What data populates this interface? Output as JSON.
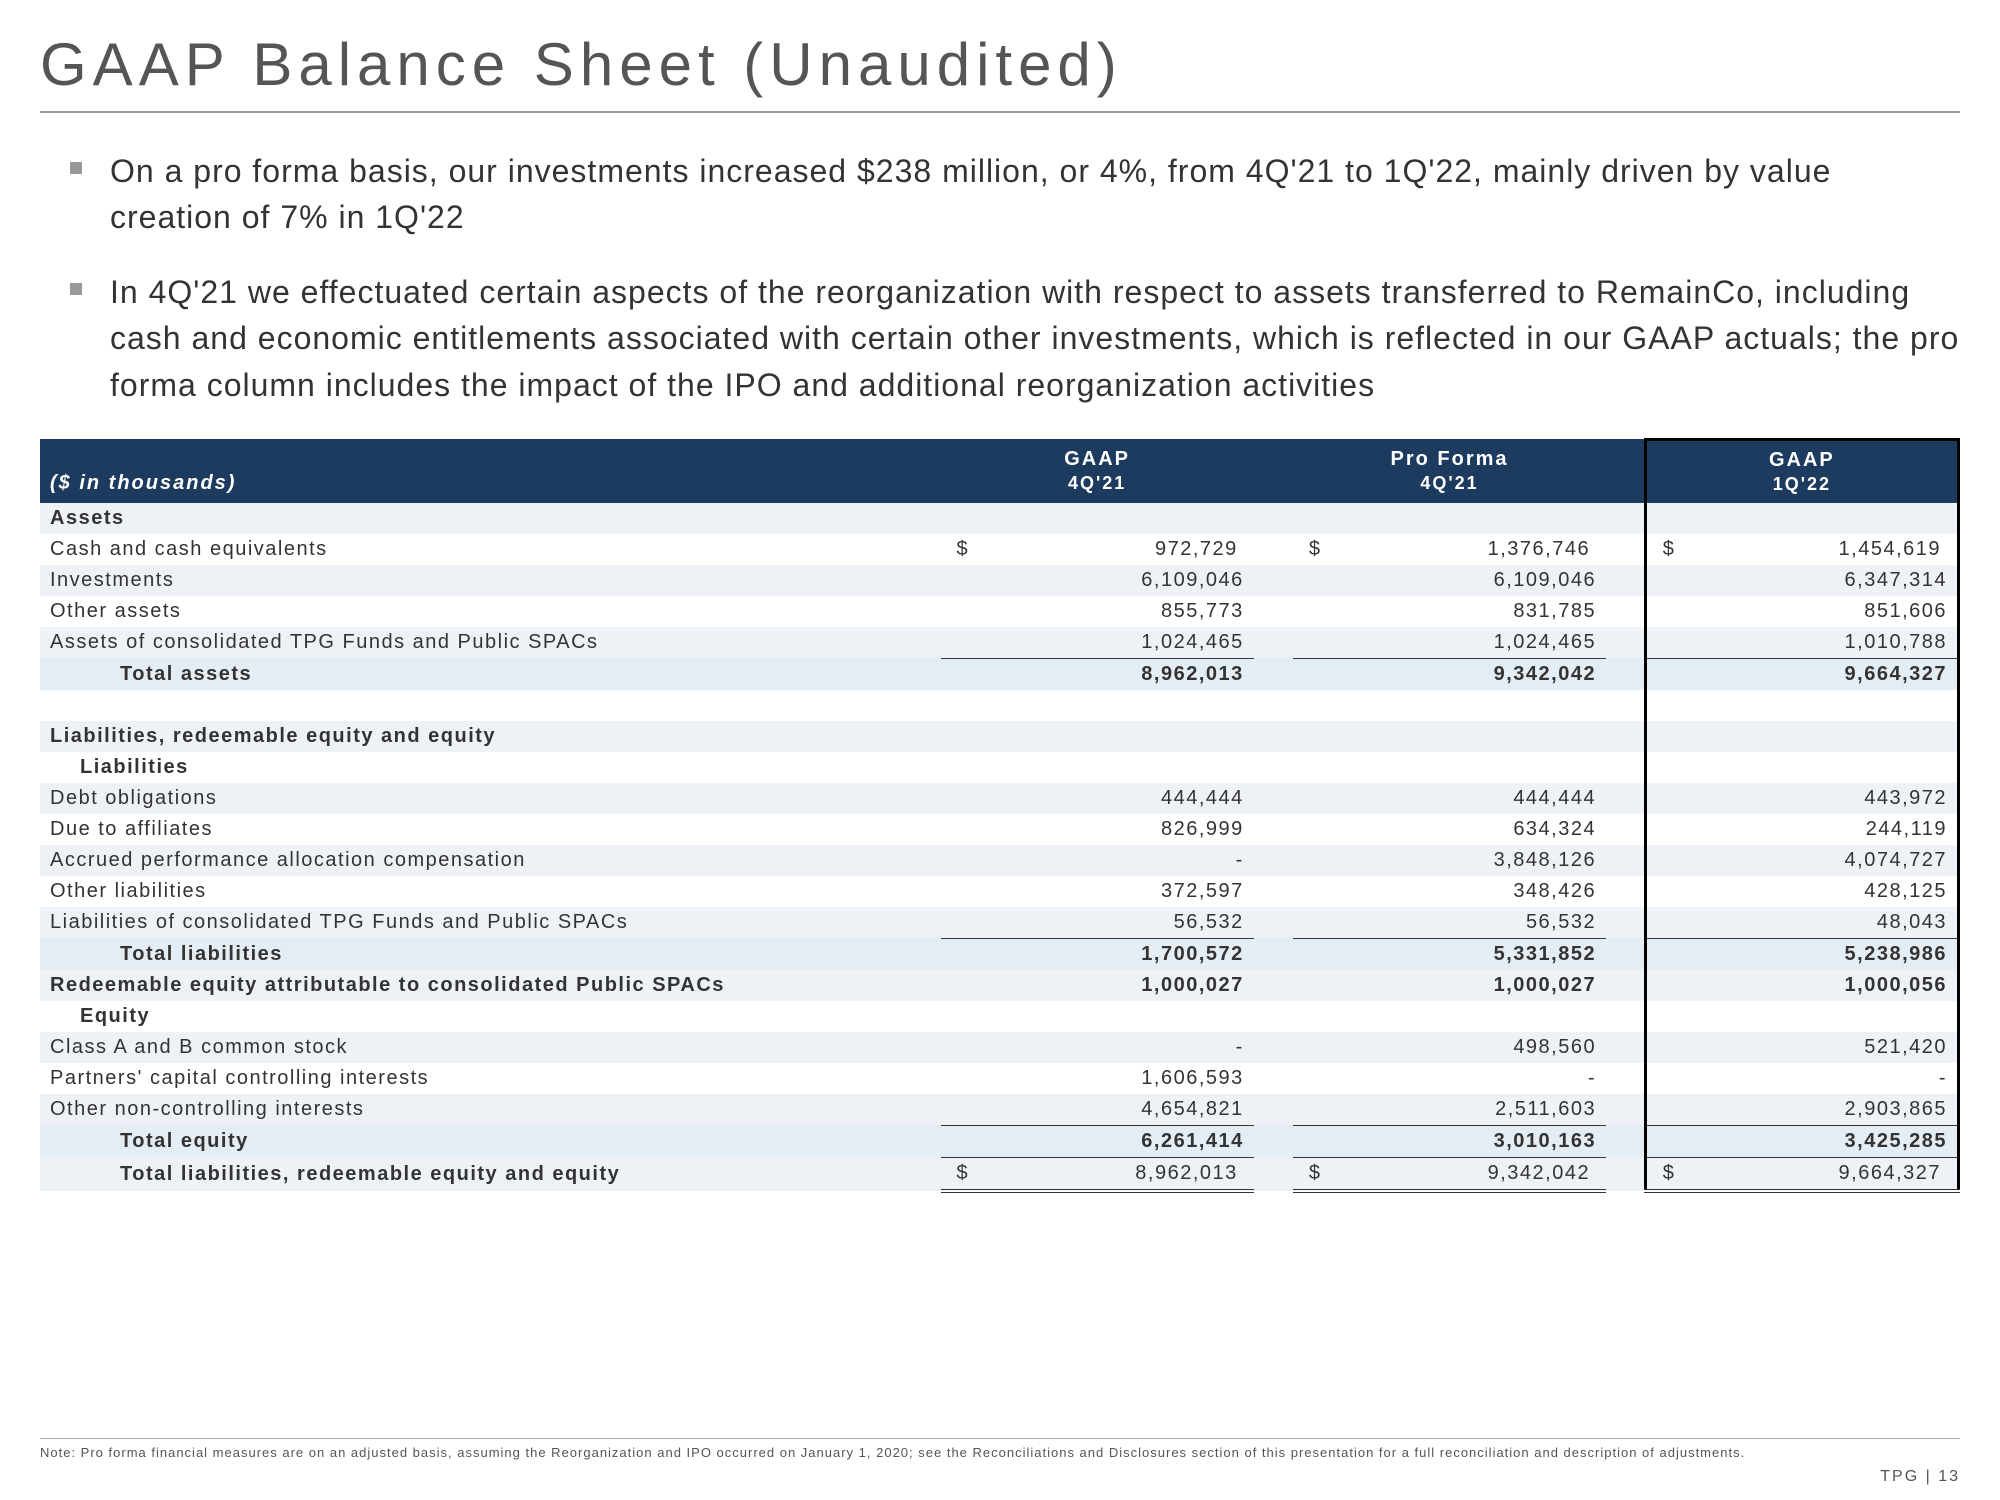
{
  "title": "GAAP Balance Sheet (Unaudited)",
  "bullets": [
    "On a pro forma basis, our investments increased $238 million, or 4%, from 4Q'21 to 1Q'22, mainly driven by value creation of 7% in 1Q'22",
    "In 4Q'21 we effectuated certain aspects of the reorganization with respect to assets transferred to RemainCo, including cash and economic entitlements associated with certain other investments, which is reflected in our GAAP actuals; the pro forma column includes the impact of the IPO and additional reorganization activities"
  ],
  "table": {
    "unit_label": "($ in thousands)",
    "columns": [
      {
        "top": "GAAP",
        "sub": "4Q'21"
      },
      {
        "top": "Pro Forma",
        "sub": "4Q'21"
      },
      {
        "top": "GAAP",
        "sub": "1Q'22"
      }
    ],
    "rows": [
      {
        "type": "section",
        "label": "Assets",
        "shade": true
      },
      {
        "label": "Cash and cash equivalents",
        "v": [
          "972,729",
          "1,376,746",
          "1,454,619"
        ],
        "dollar": true
      },
      {
        "label": "Investments",
        "v": [
          "6,109,046",
          "6,109,046",
          "6,347,314"
        ],
        "shade": true
      },
      {
        "label": "Other assets",
        "v": [
          "855,773",
          "831,785",
          "851,606"
        ]
      },
      {
        "label": "Assets of consolidated TPG Funds and Public SPACs",
        "v": [
          "1,024,465",
          "1,024,465",
          "1,010,788"
        ],
        "shade": true,
        "underline": true
      },
      {
        "label": "Total assets",
        "v": [
          "8,962,013",
          "9,342,042",
          "9,664,327"
        ],
        "indent": 2,
        "totshade": true
      },
      {
        "type": "blank"
      },
      {
        "type": "section",
        "label": "Liabilities, redeemable equity and equity",
        "shade": true
      },
      {
        "label": "Liabilities",
        "indent": 1,
        "bold": true
      },
      {
        "label": "Debt obligations",
        "v": [
          "444,444",
          "444,444",
          "443,972"
        ],
        "shade": true
      },
      {
        "label": "Due to affiliates",
        "v": [
          "826,999",
          "634,324",
          "244,119"
        ]
      },
      {
        "label": "Accrued performance allocation compensation",
        "v": [
          "-",
          "3,848,126",
          "4,074,727"
        ],
        "shade": true
      },
      {
        "label": "Other liabilities",
        "v": [
          "372,597",
          "348,426",
          "428,125"
        ]
      },
      {
        "label": "Liabilities of consolidated TPG Funds and Public SPACs",
        "v": [
          "56,532",
          "56,532",
          "48,043"
        ],
        "shade": true,
        "underline": true
      },
      {
        "label": "Total liabilities",
        "v": [
          "1,700,572",
          "5,331,852",
          "5,238,986"
        ],
        "indent": 2,
        "totshade": true
      },
      {
        "type": "section",
        "label": "Redeemable equity attributable to consolidated Public SPACs",
        "v": [
          "1,000,027",
          "1,000,027",
          "1,000,056"
        ],
        "shade": true
      },
      {
        "label": "Equity",
        "indent": 1,
        "bold": true
      },
      {
        "label": "Class A and B common stock",
        "v": [
          "-",
          "498,560",
          "521,420"
        ],
        "shade": true
      },
      {
        "label": "Partners' capital controlling interests",
        "v": [
          "1,606,593",
          "-",
          "-"
        ]
      },
      {
        "label": "Other non-controlling interests",
        "v": [
          "4,654,821",
          "2,511,603",
          "2,903,865"
        ],
        "shade": true,
        "underline": true
      },
      {
        "label": "Total equity",
        "v": [
          "6,261,414",
          "3,010,163",
          "3,425,285"
        ],
        "indent": 2,
        "totshade": true,
        "underline": true
      },
      {
        "label": "Total liabilities, redeemable equity and equity",
        "v": [
          "8,962,013",
          "9,342,042",
          "9,664,327"
        ],
        "indent": 2,
        "shade": true,
        "dollar": true,
        "grand": true
      }
    ]
  },
  "footnote": "Note: Pro forma financial measures are on an adjusted basis, assuming the Reorganization and IPO occurred on January 1, 2020; see the Reconciliations and Disclosures section of this presentation for a full reconciliation and description of adjustments.",
  "pagenum": "TPG | 13"
}
